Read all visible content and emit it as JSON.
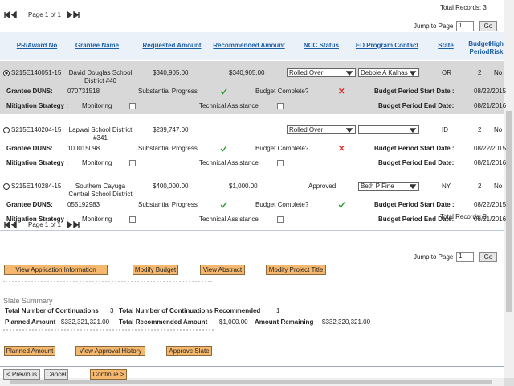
{
  "top_pager": {
    "total_records": "Total Records: 3",
    "page_label": "Page 1 of 1",
    "jump_label": "Jump to Page",
    "jump_value": "1",
    "go": "Go"
  },
  "table": {
    "headers": [
      "PR/Award No",
      "Grantee Name",
      "Requested Amount",
      "Recommended Amount",
      "NCC Status",
      "ED Program Contact",
      "State",
      "Budget Period",
      "High Risk"
    ],
    "rows": [
      {
        "award": "S215E140051-15",
        "grantee": "David Douglas School District #40",
        "requested": "$340,905.00",
        "recommended": "$340,905.00",
        "ncc_status": "Rolled Over",
        "contact": "Debbie A Kalnas",
        "state": "OR",
        "budget_period": 2,
        "high_risk": "No",
        "duns": "070731518",
        "progress": "Substantial Progress",
        "start_date": "08/22/2015",
        "end_date": "08/21/2016"
      },
      {
        "award": "S215E140204-15",
        "grantee": "Lapwai School District #341",
        "requested": "$239,747.00",
        "ncc_status": "Rolled Over",
        "state": "ID",
        "budget_period": 2,
        "high_risk": "No",
        "duns": "100015098",
        "progress": "Substantial Progress",
        "start_date": "08/22/2015",
        "end_date": "08/21/2016"
      },
      {
        "award": "S215E140284-15",
        "grantee": "Southern Cayuga Central School District",
        "requested": "$400,000.00",
        "recommended": "$1,000.00",
        "ncc_status": "Approved",
        "contact": "Beth P Fine",
        "state": "NY",
        "budget_period": 2,
        "high_risk": "No",
        "duns": "055192983",
        "progress": "Substantial Progress",
        "start_date": "08/22/2015",
        "end_date": "08/21/2016"
      }
    ]
  },
  "detail_labels": {
    "duns": "Grantee DUNS:",
    "budget_complete": "Budget Complete?",
    "start": "Budget Period Start Date :",
    "mitigation": "Mitigation Strategy :",
    "monitoring": "Monitoring",
    "technical": "Technical Assistance",
    "end": "Budget Period End Date:"
  },
  "bottom_pager": {
    "total_records": "Total Records: 3",
    "page_label": "Page 1 of 1",
    "jump_label": "Jump to Page",
    "jump_value": "1",
    "go": "Go"
  },
  "actions": [
    "View Application Information",
    "Modify Budget",
    "View Abstract",
    "Modify Project Title"
  ],
  "slate_summary": {
    "title": "Slate Summary",
    "total_continuations_label": "Total Number of Continuations",
    "total_continuations": 3,
    "recommended_label": "Total Number of Continuations Recommended",
    "recommended": 1,
    "planned_label": "Planned Amount",
    "planned": "$332,321,321.00",
    "total_recommended_label": "Total Recommended Amount",
    "total_recommended": "$1,000.00",
    "remaining_label": "Amount Remaining",
    "remaining": "$332,320,321.00"
  },
  "summary_actions": [
    "Planned Amount",
    "View Approval History",
    "Approve Slate"
  ],
  "nav": [
    "< Previous",
    "Cancel",
    "Continue >"
  ]
}
